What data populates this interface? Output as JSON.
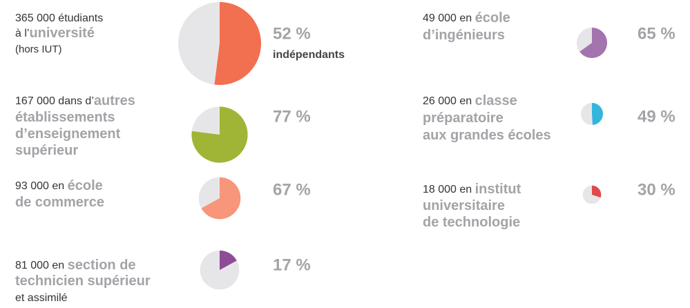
{
  "chart_data": {
    "type": "pie",
    "rest_color": "#e6e6e9",
    "items": [
      {
        "count": 365000,
        "count_label": "365 000",
        "lines": [
          [
            {
              "text": " étudiants",
              "style": "plain"
            }
          ],
          [
            {
              "text": "à l’",
              "style": "plain"
            },
            {
              "text": "université",
              "style": "bold"
            }
          ],
          [
            {
              "text": "(hors IUT)",
              "style": "small"
            }
          ]
        ],
        "value": 52,
        "value_label": "52 %",
        "note": "indépendants",
        "color": "#f26f50"
      },
      {
        "count": 167000,
        "count_label": "167 000",
        "lines": [
          [
            {
              "text": " dans d’",
              "style": "plain"
            },
            {
              "text": "autres",
              "style": "bold"
            }
          ],
          [
            {
              "text": "établissements",
              "style": "bold"
            }
          ],
          [
            {
              "text": "d’enseignement",
              "style": "bold"
            }
          ],
          [
            {
              "text": "supérieur",
              "style": "bold"
            }
          ]
        ],
        "value": 77,
        "value_label": "77 %",
        "color": "#a0b535"
      },
      {
        "count": 93000,
        "count_label": "93 000",
        "lines": [
          [
            {
              "text": " en ",
              "style": "plain"
            },
            {
              "text": "école",
              "style": "bold"
            }
          ],
          [
            {
              "text": "de commerce",
              "style": "bold"
            }
          ]
        ],
        "value": 67,
        "value_label": "67 %",
        "color": "#f7967a"
      },
      {
        "count": 81000,
        "count_label": "81 000",
        "lines": [
          [
            {
              "text": " en ",
              "style": "plain"
            },
            {
              "text": "section de",
              "style": "bold"
            }
          ],
          [
            {
              "text": "technicien supérieur",
              "style": "bold"
            }
          ],
          [
            {
              "text": "et assimilé",
              "style": "plain"
            }
          ]
        ],
        "value": 17,
        "value_label": "17 %",
        "color": "#8e4b96"
      },
      {
        "count": 49000,
        "count_label": "49 000",
        "lines": [
          [
            {
              "text": " en ",
              "style": "plain"
            },
            {
              "text": "école",
              "style": "bold"
            }
          ],
          [
            {
              "text": "d’ingénieurs",
              "style": "bold"
            }
          ]
        ],
        "value": 65,
        "value_label": "65 %",
        "color": "#a374ad"
      },
      {
        "count": 26000,
        "count_label": "26 000",
        "lines": [
          [
            {
              "text": " en ",
              "style": "plain"
            },
            {
              "text": "classe",
              "style": "bold"
            }
          ],
          [
            {
              "text": "préparatoire",
              "style": "bold"
            }
          ],
          [
            {
              "text": "aux grandes écoles",
              "style": "bold"
            }
          ]
        ],
        "value": 49,
        "value_label": "49 %",
        "color": "#33b5dd"
      },
      {
        "count": 18000,
        "count_label": "18 000",
        "lines": [
          [
            {
              "text": " en ",
              "style": "plain"
            },
            {
              "text": "institut",
              "style": "bold"
            }
          ],
          [
            {
              "text": "universitaire",
              "style": "bold"
            }
          ],
          [
            {
              "text": "de technologie",
              "style": "bold"
            }
          ]
        ],
        "value": 30,
        "value_label": "30 %",
        "color": "#e04949"
      }
    ]
  }
}
